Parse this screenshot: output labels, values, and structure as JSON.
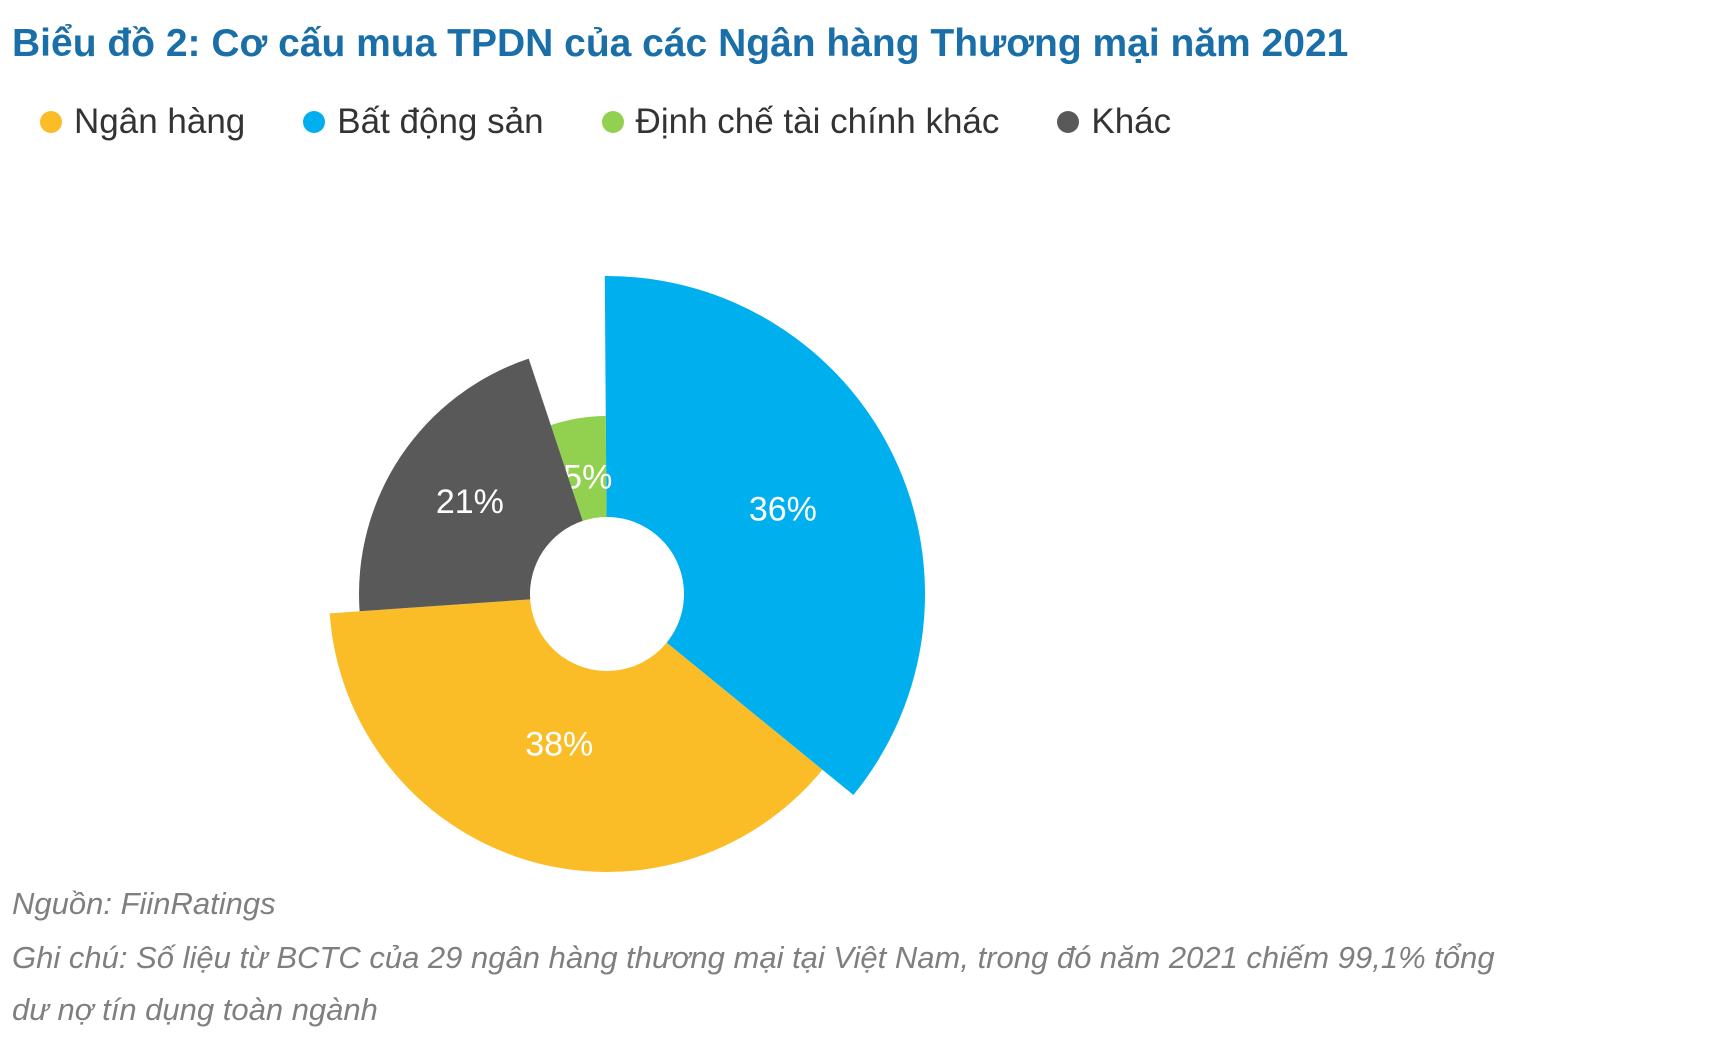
{
  "title": "Biểu đồ 2: Cơ cấu mua TPDN của các Ngân hàng Thương mại năm 2021",
  "chart_data": {
    "type": "pie",
    "variant": "donut, unequal radii",
    "title": "Biểu đồ 2: Cơ cấu mua TPDN của các Ngân hàng Thương mại năm 2021",
    "legend_position": "top-left",
    "slices": [
      {
        "name": "Ngân hàng",
        "value": 38,
        "label": "38%",
        "color": "#fbbd27"
      },
      {
        "name": "Bất động sản",
        "value": 36,
        "label": "36%",
        "color": "#00b0ee"
      },
      {
        "name": "Định chế tài chính khác",
        "value": 5,
        "label": "5%",
        "color": "#92d050"
      },
      {
        "name": "Khác",
        "value": 21,
        "label": "21%",
        "color": "#595959"
      }
    ]
  },
  "source": "Nguồn: FiinRatings",
  "note_line1": "Ghi chú: Số liệu từ BCTC của 29 ngân hàng thương mại tại Việt Nam, trong đó năm 2021 chiếm 99,1% tổng",
  "note_line2": "dư nợ tín dụng toàn ngành"
}
